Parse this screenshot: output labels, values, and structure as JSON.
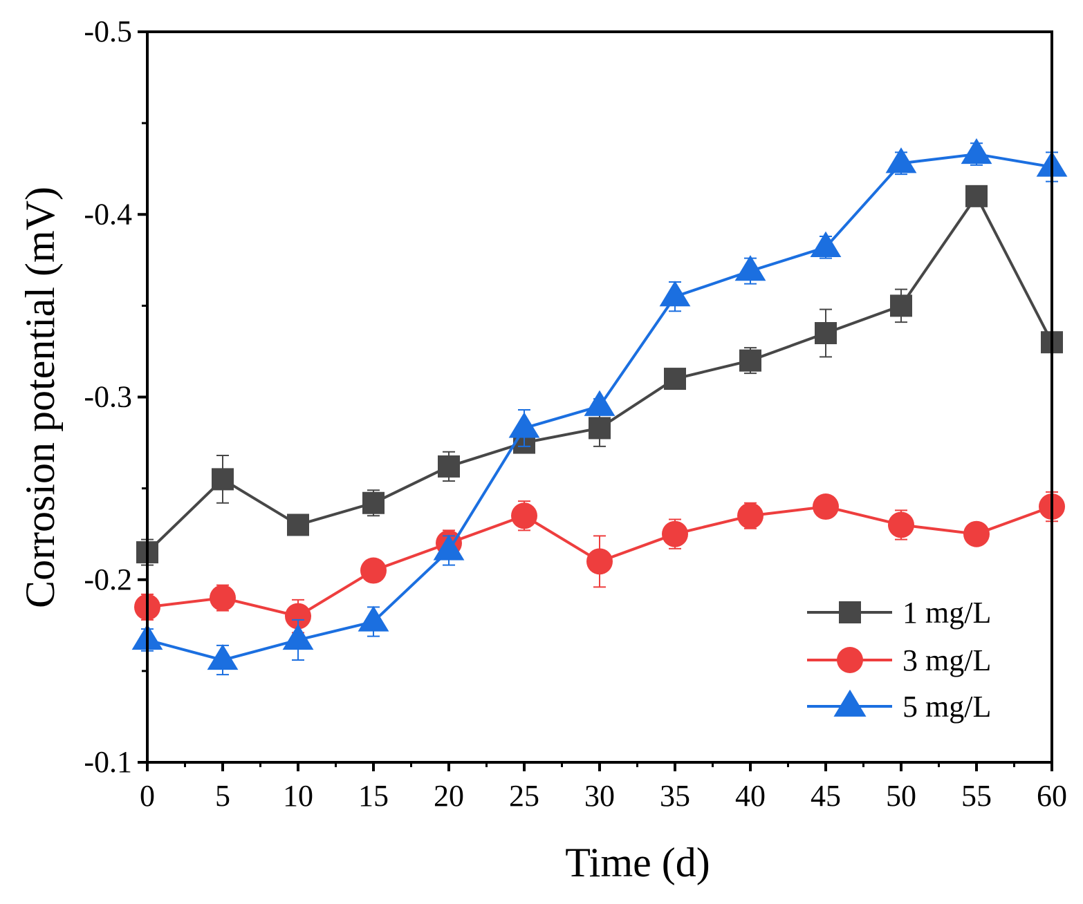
{
  "chart_data": {
    "type": "line",
    "xlabel": "Time (d)",
    "ylabel": "Corrosion potential (mV)",
    "x": [
      0,
      5,
      10,
      15,
      20,
      25,
      30,
      35,
      40,
      45,
      50,
      55,
      60
    ],
    "xlim": [
      0,
      60
    ],
    "ylim": [
      -0.1,
      -0.5
    ],
    "y_reversed": true,
    "x_ticks": [
      "0",
      "5",
      "10",
      "15",
      "20",
      "25",
      "30",
      "35",
      "40",
      "45",
      "50",
      "55",
      "60"
    ],
    "y_ticks": [
      {
        "value": -0.1,
        "label": "-0.1"
      },
      {
        "value": -0.2,
        "label": "-0.2"
      },
      {
        "value": -0.3,
        "label": "-0.3"
      },
      {
        "value": -0.4,
        "label": "-0.4"
      },
      {
        "value": -0.5,
        "label": "-0.5"
      }
    ],
    "grid": false,
    "legend_position": "bottom-right",
    "series": [
      {
        "name": "1 mg/L",
        "color": "#474747",
        "marker": "square",
        "values": [
          -0.215,
          -0.255,
          -0.23,
          -0.242,
          -0.262,
          -0.275,
          -0.283,
          -0.31,
          -0.32,
          -0.335,
          -0.35,
          -0.41,
          -0.33
        ],
        "errors": [
          0.007,
          0.013,
          0.004,
          0.007,
          0.008,
          0.005,
          0.01,
          0.004,
          0.007,
          0.013,
          0.009,
          0.004,
          0.005
        ]
      },
      {
        "name": "3 mg/L",
        "color": "#ee3e3e",
        "marker": "circle",
        "values": [
          -0.185,
          -0.19,
          -0.18,
          -0.205,
          -0.22,
          -0.235,
          -0.21,
          -0.225,
          -0.235,
          -0.24,
          -0.23,
          -0.225,
          -0.24
        ],
        "errors": [
          0.007,
          0.007,
          0.009,
          0.005,
          0.007,
          0.008,
          0.014,
          0.008,
          0.007,
          0.004,
          0.008,
          0.006,
          0.008
        ]
      },
      {
        "name": "5 mg/L",
        "color": "#1b6fe0",
        "marker": "triangle",
        "values": [
          -0.167,
          -0.156,
          -0.167,
          -0.177,
          -0.216,
          -0.283,
          -0.295,
          -0.355,
          -0.369,
          -0.382,
          -0.428,
          -0.433,
          -0.426
        ],
        "errors": [
          0.006,
          0.008,
          0.011,
          0.008,
          0.008,
          0.01,
          0.004,
          0.008,
          0.007,
          0.006,
          0.006,
          0.006,
          0.008
        ]
      }
    ]
  }
}
